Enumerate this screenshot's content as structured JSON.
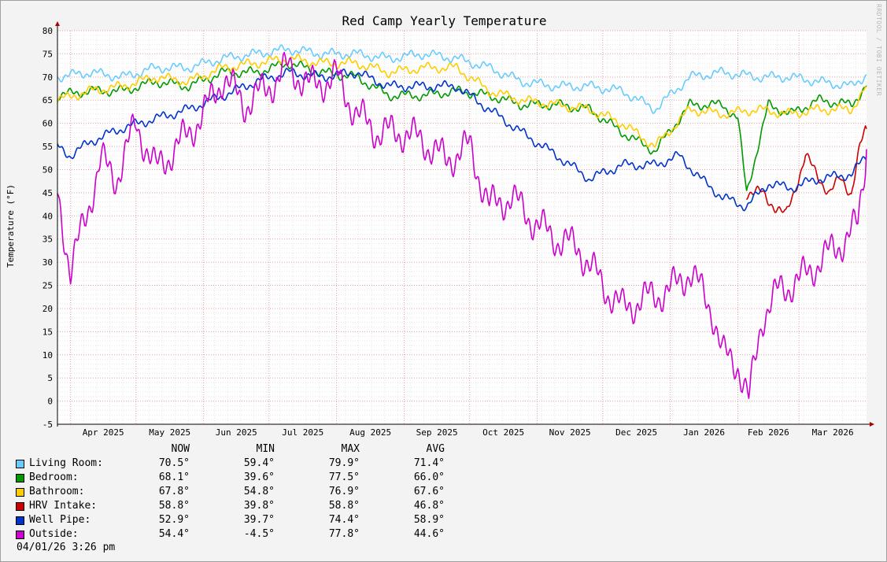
{
  "chart_data": {
    "type": "line",
    "title": "Red Camp Yearly Temperature",
    "ylabel": "Temperature (°F)",
    "xlabel": "",
    "ylim": [
      -5,
      80
    ],
    "yticks": [
      -5,
      0,
      5,
      10,
      15,
      20,
      25,
      30,
      35,
      40,
      45,
      50,
      55,
      60,
      65,
      70,
      75,
      80
    ],
    "xlim": [
      "2025-03-26",
      "2026-04-01"
    ],
    "x_tick_labels": [
      "Apr 2025",
      "May 2025",
      "Jun 2025",
      "Jul 2025",
      "Aug 2025",
      "Sep 2025",
      "Oct 2025",
      "Nov 2025",
      "Dec 2025",
      "Jan 2026",
      "Feb 2026",
      "Mar 2026"
    ],
    "x_tick_dates": [
      "2025-04-01",
      "2025-05-01",
      "2025-06-01",
      "2025-07-01",
      "2025-08-01",
      "2025-09-01",
      "2025-10-01",
      "2025-11-01",
      "2025-12-01",
      "2026-01-01",
      "2026-02-01",
      "2026-03-01"
    ],
    "grid": true,
    "legend_position": "bottom",
    "series": [
      {
        "name": "Living Room",
        "color": "#66ccff",
        "x": [
          "2025-03-26",
          "2025-04-10",
          "2025-04-25",
          "2025-05-10",
          "2025-05-25",
          "2025-06-10",
          "2025-06-25",
          "2025-07-10",
          "2025-07-25",
          "2025-08-10",
          "2025-08-25",
          "2025-09-10",
          "2025-09-25",
          "2025-10-10",
          "2025-10-25",
          "2025-11-10",
          "2025-11-25",
          "2025-12-10",
          "2025-12-25",
          "2026-01-10",
          "2026-01-25",
          "2026-02-10",
          "2026-02-25",
          "2026-03-10",
          "2026-03-25",
          "2026-04-01"
        ],
        "y": [
          70,
          71,
          70,
          72,
          72,
          74,
          75,
          76,
          75,
          75,
          74,
          75,
          74,
          72,
          69,
          68,
          68,
          67,
          63,
          70,
          71,
          70,
          70,
          69,
          68,
          70.5
        ]
      },
      {
        "name": "Bedroom",
        "color": "#009900",
        "x": [
          "2025-03-26",
          "2025-04-10",
          "2025-04-25",
          "2025-05-10",
          "2025-05-25",
          "2025-06-10",
          "2025-06-25",
          "2025-07-10",
          "2025-07-25",
          "2025-08-10",
          "2025-08-25",
          "2025-09-10",
          "2025-09-25",
          "2025-10-10",
          "2025-10-25",
          "2025-11-10",
          "2025-11-25",
          "2025-12-10",
          "2025-12-25",
          "2026-01-10",
          "2026-01-25",
          "2026-02-01",
          "2026-02-05",
          "2026-02-15",
          "2026-02-25",
          "2026-03-10",
          "2026-03-25",
          "2026-04-01"
        ],
        "y": [
          66,
          67,
          67,
          69,
          68,
          71,
          71,
          73,
          71,
          70,
          66,
          66,
          67,
          66,
          64,
          64,
          63,
          58,
          54,
          64,
          64,
          61,
          45,
          64,
          62,
          65,
          64,
          68.1
        ]
      },
      {
        "name": "Bathroom",
        "color": "#ffcc00",
        "x": [
          "2025-03-26",
          "2025-04-10",
          "2025-04-25",
          "2025-05-10",
          "2025-05-25",
          "2025-06-10",
          "2025-06-25",
          "2025-07-10",
          "2025-07-25",
          "2025-08-10",
          "2025-08-25",
          "2025-09-10",
          "2025-09-25",
          "2025-10-10",
          "2025-10-25",
          "2025-11-10",
          "2025-11-25",
          "2025-12-10",
          "2025-12-25",
          "2026-01-10",
          "2026-01-25",
          "2026-02-10",
          "2026-02-25",
          "2026-03-10",
          "2026-03-25",
          "2026-04-01"
        ],
        "y": [
          65,
          67,
          68,
          70,
          69,
          72,
          73,
          74,
          73,
          73,
          71,
          72,
          72,
          67,
          65,
          64,
          63,
          60,
          55,
          63,
          62,
          63,
          62,
          63,
          63,
          67.8
        ]
      },
      {
        "name": "HRV Intake",
        "color": "#cc0000",
        "x": [
          "2026-02-05",
          "2026-02-12",
          "2026-02-18",
          "2026-02-23",
          "2026-02-28",
          "2026-03-04",
          "2026-03-09",
          "2026-03-15",
          "2026-03-20",
          "2026-03-25",
          "2026-03-29",
          "2026-04-01"
        ],
        "y": [
          45,
          45,
          42,
          40,
          47,
          53,
          49,
          45,
          48,
          45,
          55,
          58.8
        ]
      },
      {
        "name": "Well Pipe",
        "color": "#0033cc",
        "x": [
          "2025-03-26",
          "2025-04-01",
          "2025-04-10",
          "2025-04-25",
          "2025-05-10",
          "2025-05-25",
          "2025-06-10",
          "2025-06-25",
          "2025-07-10",
          "2025-07-25",
          "2025-08-10",
          "2025-08-25",
          "2025-09-10",
          "2025-09-25",
          "2025-10-10",
          "2025-10-25",
          "2025-11-10",
          "2025-11-25",
          "2025-12-10",
          "2025-12-25",
          "2026-01-05",
          "2026-01-15",
          "2026-01-25",
          "2026-02-05",
          "2026-02-15",
          "2026-02-25",
          "2026-03-10",
          "2026-03-25",
          "2026-04-01"
        ],
        "y": [
          55,
          53,
          56,
          59,
          61,
          63,
          66,
          69,
          71,
          70,
          71,
          68,
          68,
          68,
          63,
          58,
          53,
          48,
          51,
          51,
          53,
          48,
          44,
          42,
          47,
          46,
          48,
          49,
          52.9
        ]
      },
      {
        "name": "Outside",
        "color": "#cc00cc",
        "x": [
          "2025-03-26",
          "2025-04-01",
          "2025-04-08",
          "2025-04-15",
          "2025-04-22",
          "2025-05-01",
          "2025-05-10",
          "2025-05-20",
          "2025-06-01",
          "2025-06-10",
          "2025-06-20",
          "2025-07-01",
          "2025-07-10",
          "2025-07-20",
          "2025-08-01",
          "2025-08-10",
          "2025-08-20",
          "2025-09-01",
          "2025-09-10",
          "2025-09-20",
          "2025-10-01",
          "2025-10-10",
          "2025-10-20",
          "2025-11-01",
          "2025-11-10",
          "2025-11-20",
          "2025-12-01",
          "2025-12-10",
          "2025-12-20",
          "2026-01-01",
          "2026-01-10",
          "2026-01-20",
          "2026-01-25",
          "2026-02-01",
          "2026-02-06",
          "2026-02-12",
          "2026-02-20",
          "2026-03-01",
          "2026-03-10",
          "2026-03-20",
          "2026-03-28",
          "2026-04-01"
        ],
        "y": [
          45,
          28,
          40,
          52,
          48,
          60,
          50,
          55,
          62,
          70,
          64,
          68,
          72,
          68,
          70,
          62,
          58,
          58,
          56,
          52,
          55,
          42,
          44,
          38,
          35,
          33,
          25,
          20,
          22,
          24,
          28,
          20,
          10,
          8,
          0,
          18,
          24,
          26,
          30,
          34,
          38,
          54.4
        ]
      }
    ],
    "legend_columns": [
      "NOW",
      "MIN",
      "MAX",
      "AVG"
    ],
    "legend_rows": [
      {
        "name": "Living Room:",
        "color": "#66ccff",
        "now": "70.5°",
        "min": "59.4°",
        "max": "79.9°",
        "avg": "71.4°"
      },
      {
        "name": "Bedroom:",
        "color": "#009900",
        "now": "68.1°",
        "min": "39.6°",
        "max": "77.5°",
        "avg": "66.0°"
      },
      {
        "name": "Bathroom:",
        "color": "#ffcc00",
        "now": "67.8°",
        "min": "54.8°",
        "max": "76.9°",
        "avg": "67.6°"
      },
      {
        "name": "HRV Intake:",
        "color": "#cc0000",
        "now": "58.8°",
        "min": "39.8°",
        "max": "58.8°",
        "avg": "46.8°"
      },
      {
        "name": "Well Pipe:",
        "color": "#0033cc",
        "now": "52.9°",
        "min": "39.7°",
        "max": "74.4°",
        "avg": "58.9°"
      },
      {
        "name": "Outside:",
        "color": "#cc00cc",
        "now": "54.4°",
        "min": "-4.5°",
        "max": "77.8°",
        "avg": "44.6°"
      }
    ]
  },
  "watermark": "RRDTOOL / TOBI OETIKER",
  "timestamp": "04/01/26  3:26 pm"
}
